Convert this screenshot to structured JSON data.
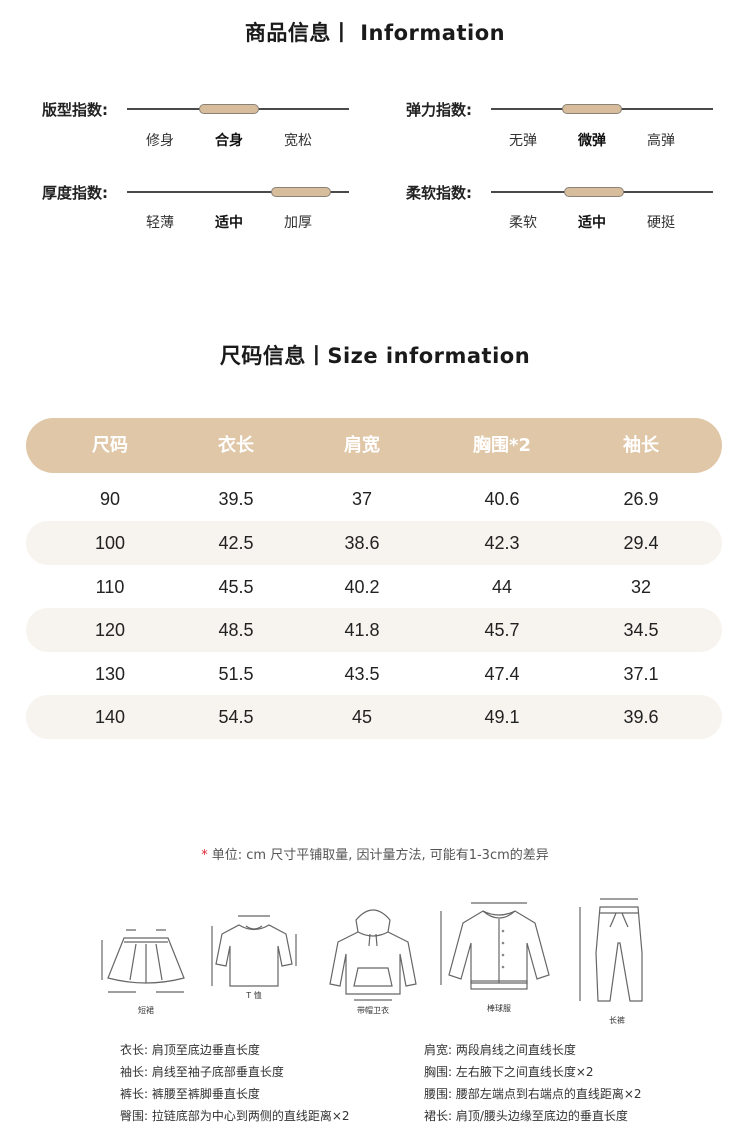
{
  "product_info": {
    "title": "商品信息丨 Information",
    "indices": [
      {
        "label": "版型指数:",
        "options": [
          "修身",
          "合身",
          "宽松"
        ],
        "selected": 1
      },
      {
        "label": "弹力指数:",
        "options": [
          "无弹",
          "微弹",
          "高弹"
        ],
        "selected": 1
      },
      {
        "label": "厚度指数:",
        "options": [
          "轻薄",
          "适中",
          "加厚"
        ],
        "selected": 2
      },
      {
        "label": "柔软指数:",
        "options": [
          "柔软",
          "适中",
          "硬挺"
        ],
        "selected": 1
      }
    ],
    "accent_color": "#d7bd9c"
  },
  "size_info": {
    "title": "尺码信息丨Size information",
    "header_color": "#e0c7a8",
    "columns": [
      "尺码",
      "衣长",
      "肩宽",
      "胸围*2",
      "袖长"
    ],
    "rows": [
      [
        "90",
        "39.5",
        "37",
        "40.6",
        "26.9"
      ],
      [
        "100",
        "42.5",
        "38.6",
        "42.3",
        "29.4"
      ],
      [
        "110",
        "45.5",
        "40.2",
        "44",
        "32"
      ],
      [
        "120",
        "48.5",
        "41.8",
        "45.7",
        "34.5"
      ],
      [
        "130",
        "51.5",
        "43.5",
        "47.4",
        "37.1"
      ],
      [
        "140",
        "54.5",
        "45",
        "49.1",
        "39.6"
      ]
    ]
  },
  "note": {
    "star": "*",
    "text": "单位: cm  尺寸平铺取量, 因计量方法, 可能有1-3cm的差异"
  },
  "garments": [
    {
      "icon": "skirt-icon",
      "caption": "短裙"
    },
    {
      "icon": "tshirt-icon",
      "caption": "T 恤"
    },
    {
      "icon": "hoodie-icon",
      "caption": "带帽卫衣"
    },
    {
      "icon": "baseball-jacket-icon",
      "caption": "棒球服"
    },
    {
      "icon": "pants-icon",
      "caption": "长裤"
    }
  ],
  "definitions_left": [
    {
      "key": "衣长:",
      "value": "肩顶至底边垂直长度"
    },
    {
      "key": "袖长:",
      "value": "肩线至袖子底部垂直长度"
    },
    {
      "key": "裤长:",
      "value": "裤腰至裤脚垂直长度"
    },
    {
      "key": "臀围:",
      "value": "拉链底部为中心到两侧的直线距离×2"
    }
  ],
  "definitions_right": [
    {
      "key": "肩宽:",
      "value": "两段肩线之间直线长度"
    },
    {
      "key": "胸围:",
      "value": "左右腋下之间直线长度×2"
    },
    {
      "key": "腰围:",
      "value": "腰部左端点到右端点的直线距离×2"
    },
    {
      "key": "裙长:",
      "value": "肩顶/腰头边缘至底边的垂直长度"
    }
  ]
}
